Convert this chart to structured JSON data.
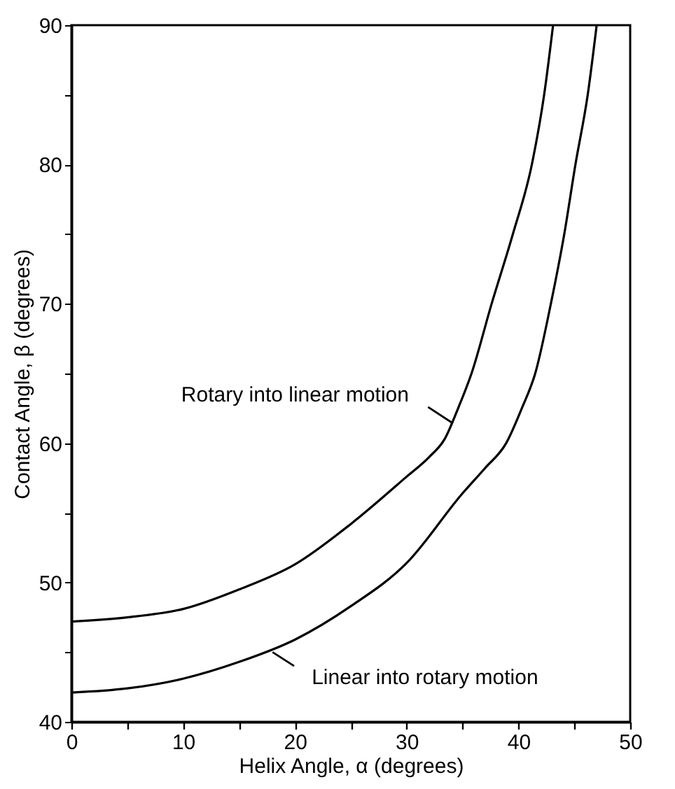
{
  "chart_data": {
    "type": "line",
    "xlabel": "Helix Angle, α (degrees)",
    "ylabel": "Contact Angle, β (degrees)",
    "xlim": [
      0,
      50
    ],
    "ylim": [
      40,
      90
    ],
    "xticks": [
      0,
      {
        "value": 5,
        "label": null
      },
      10,
      {
        "value": 15,
        "label": null
      },
      20,
      {
        "value": 25,
        "label": null
      },
      30,
      {
        "value": 35,
        "label": null
      },
      40,
      {
        "value": 45,
        "label": null
      },
      50
    ],
    "yticks": [
      40,
      {
        "value": 45,
        "label": null
      },
      50,
      {
        "value": 55,
        "label": null
      },
      60,
      {
        "value": 65,
        "label": null
      },
      70,
      {
        "value": 75,
        "label": null
      },
      80,
      {
        "value": 85,
        "label": null
      },
      90
    ],
    "grid": false,
    "legend": false,
    "line_style": "solid",
    "series": [
      {
        "color": "#000000",
        "x": [
          0,
          5,
          10,
          15,
          20,
          25,
          30,
          32,
          33.4,
          34.6,
          35.8,
          37.6,
          39.5,
          41.2,
          42.3,
          43.1
        ],
        "values": [
          47.2,
          47.5,
          48.1,
          49.5,
          51.3,
          54.2,
          57.6,
          59,
          60.3,
          62.5,
          65,
          70,
          75,
          80,
          85,
          90
        ]
      },
      {
        "color": "#000000",
        "x": [
          0,
          5,
          10,
          15,
          20,
          25,
          30,
          35,
          37,
          38.9,
          40.3,
          41.5,
          42.9,
          44.1,
          45.1,
          46.2,
          47.0
        ],
        "values": [
          42.1,
          42.4,
          43.1,
          44.3,
          45.9,
          48.3,
          51.4,
          56.4,
          58.2,
          60,
          62.5,
          65,
          70,
          75,
          80,
          85,
          90
        ]
      }
    ],
    "annotations": [
      {
        "text": "Rotary into linear motion",
        "x": 34,
        "y": 61.5
      },
      {
        "text": "Linear into rotary motion",
        "x": 18,
        "y": 45
      }
    ]
  }
}
